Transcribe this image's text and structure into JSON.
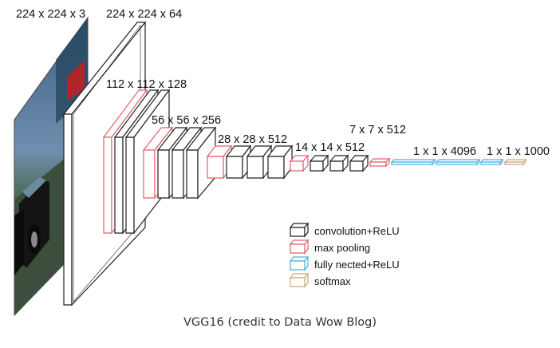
{
  "diagram": {
    "dimension_labels": [
      "224 x 224 x 3",
      "224 x 224 x 64",
      "112 x 112 x 128",
      "56 x 56 x 256",
      "28 x 28 x 512",
      "14 x 14 x 512",
      "7 x 7 x 512",
      "1 x 1 x 4096",
      "1 x 1 x 1000"
    ],
    "legend": [
      {
        "label": "convolution+ReLU",
        "color": "#222222"
      },
      {
        "label": "max pooling",
        "color": "#e5606a"
      },
      {
        "label": "fully nected+ReLU",
        "color": "#46b4e0"
      },
      {
        "label": "softmax",
        "color": "#c9a97a"
      }
    ],
    "caption": "VGG16 (credit to Data Wow Blog)"
  },
  "colors": {
    "conv": "#222222",
    "pool": "#e5606a",
    "fc": "#46b4e0",
    "softmax": "#c9a97a"
  }
}
